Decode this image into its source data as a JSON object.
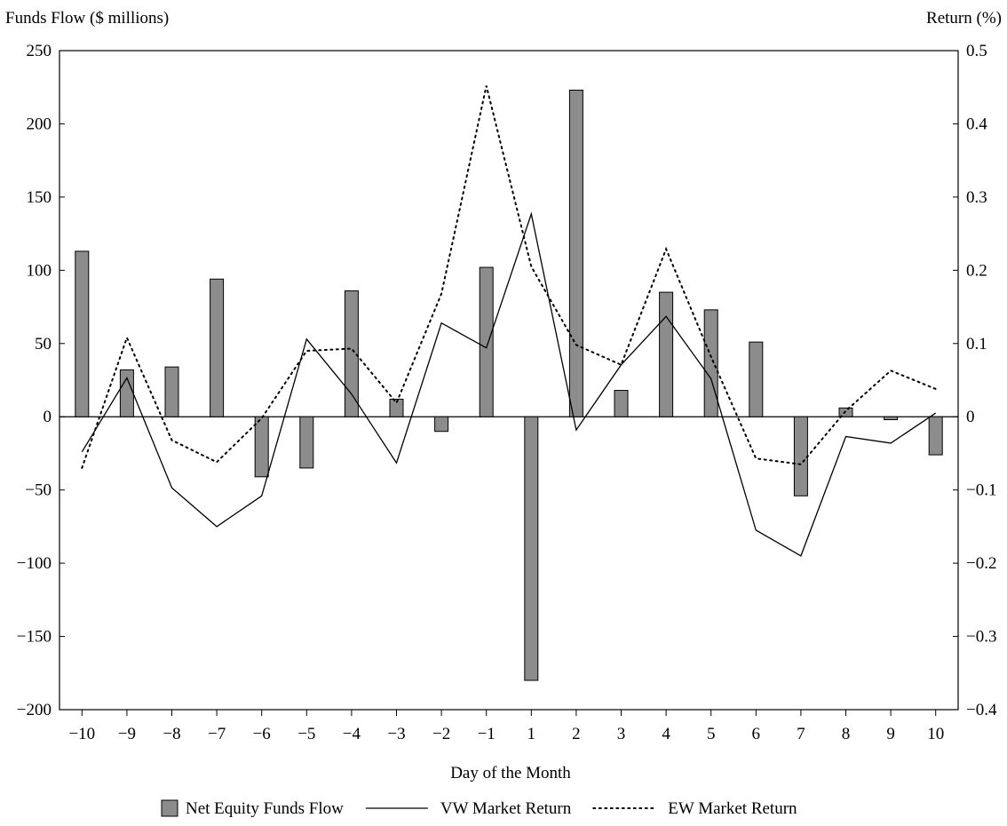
{
  "chart_data": {
    "type": "bar",
    "title": "",
    "xlabel": "Day of the Month",
    "ylabel_left": "Funds Flow ($ millions)",
    "ylabel_right": "Return (%)",
    "categories": [
      "−10",
      "−9",
      "−8",
      "−7",
      "−6",
      "−5",
      "−4",
      "−3",
      "−2",
      "−1",
      "1",
      "2",
      "3",
      "4",
      "5",
      "6",
      "7",
      "8",
      "9",
      "10"
    ],
    "ylim_left": [
      -200,
      250
    ],
    "ylim_right": [
      -0.4,
      0.5
    ],
    "yticks_left": [
      "250",
      "200",
      "150",
      "100",
      "50",
      "0",
      "−50",
      "−100",
      "−150",
      "−200"
    ],
    "yticks_right": [
      "0.5",
      "0.4",
      "0.3",
      "0.2",
      "0.1",
      "0",
      "−0.1",
      "−0.2",
      "−0.3",
      "−0.4"
    ],
    "grid": false,
    "legend_position": "bottom",
    "series": [
      {
        "name": "Net Equity Funds Flow",
        "type": "bar",
        "axis": "left",
        "color": "#8c8c8c",
        "values": [
          113,
          32,
          34,
          94,
          -41,
          -35,
          86,
          12,
          -10,
          102,
          -180,
          223,
          18,
          85,
          73,
          51,
          -54,
          6,
          -2,
          -26
        ]
      },
      {
        "name": "VW Market Return",
        "type": "line",
        "style": "solid",
        "axis": "right",
        "color": "#000000",
        "values": [
          -0.048,
          0.053,
          -0.097,
          -0.15,
          -0.108,
          0.106,
          0.031,
          -0.063,
          0.128,
          0.094,
          0.277,
          -0.018,
          0.071,
          0.137,
          0.052,
          -0.155,
          -0.19,
          -0.027,
          -0.036,
          0.005
        ]
      },
      {
        "name": "EW Market Return",
        "type": "line",
        "style": "dotted",
        "axis": "right",
        "color": "#000000",
        "values": [
          -0.07,
          0.108,
          -0.032,
          -0.062,
          -0.002,
          0.09,
          0.093,
          0.019,
          0.168,
          0.452,
          0.205,
          0.098,
          0.071,
          0.229,
          0.082,
          -0.057,
          -0.065,
          0.008,
          0.063,
          0.038
        ]
      }
    ]
  }
}
